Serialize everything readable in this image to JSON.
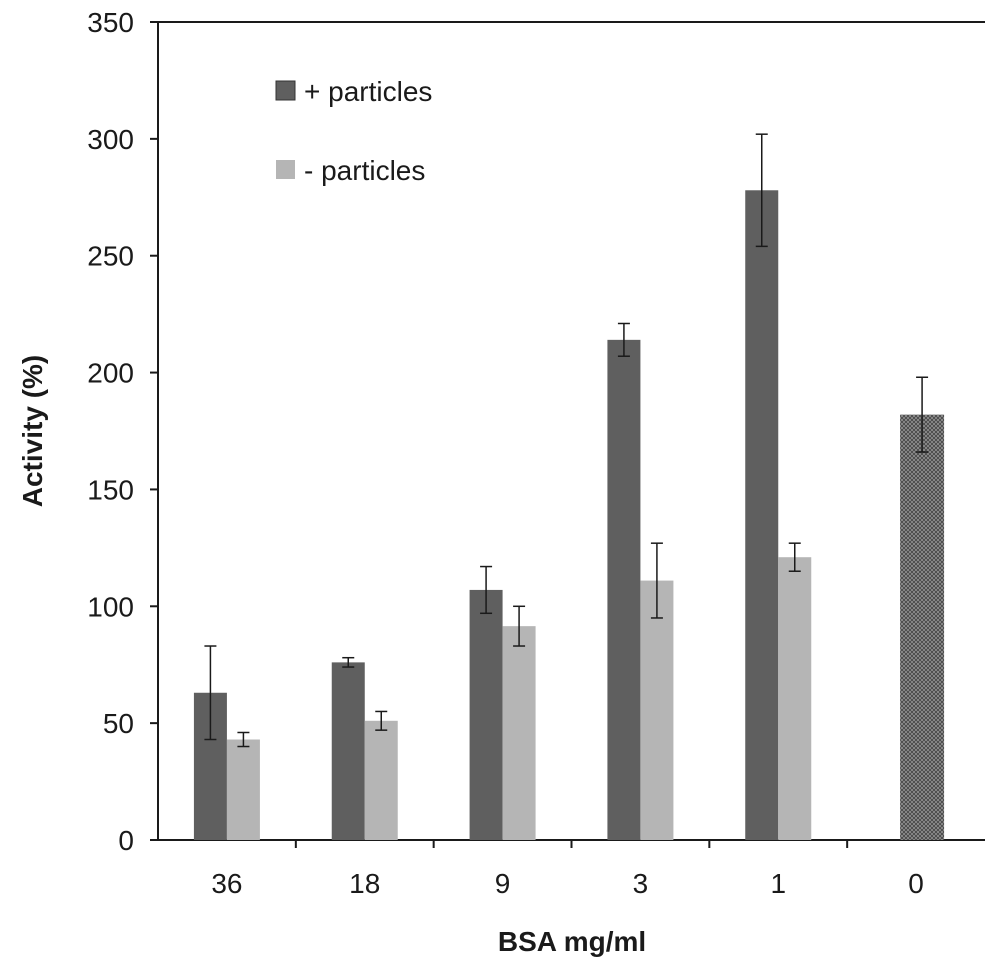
{
  "chart_data": {
    "type": "bar",
    "xlabel": "BSA mg/ml",
    "ylabel": "Activity (%)",
    "ylim": [
      0,
      350
    ],
    "yticks": [
      0,
      50,
      100,
      150,
      200,
      250,
      300,
      350
    ],
    "categories": [
      "36",
      "18",
      "9",
      "3",
      "1",
      "0"
    ],
    "legend_position": "top-left",
    "grid": false,
    "series": [
      {
        "name": "+ particles",
        "color": "#5f5f5f",
        "values": [
          63,
          76,
          107,
          214,
          278,
          null
        ],
        "errors": [
          20,
          2,
          10,
          7,
          24,
          null
        ]
      },
      {
        "name": "- particles",
        "color": "#b5b5b5",
        "values": [
          43,
          51,
          91.5,
          111,
          121,
          null
        ],
        "errors": [
          3,
          4,
          8.5,
          16,
          6,
          null
        ]
      }
    ],
    "control": {
      "category": "0",
      "value": 182,
      "error": 16,
      "color": "#8a8a8a",
      "fill": "crosshatch"
    }
  }
}
